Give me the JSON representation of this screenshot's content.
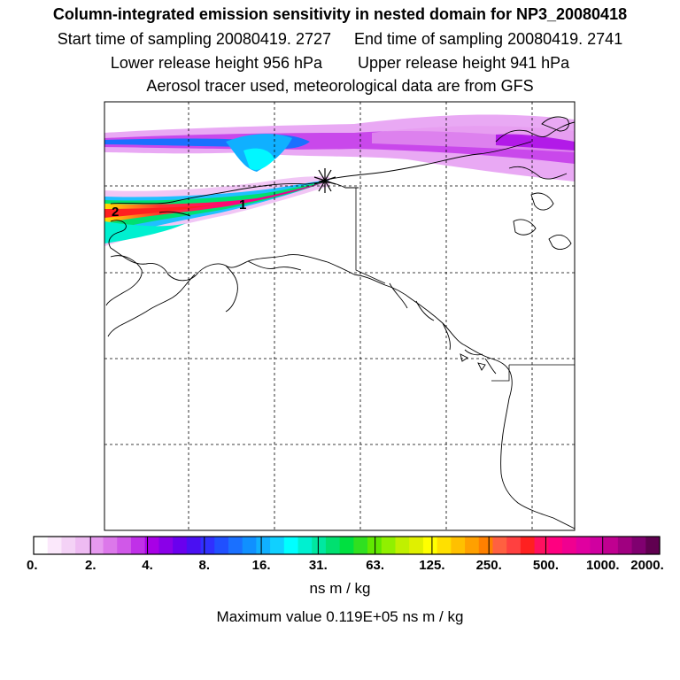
{
  "title": "Column-integrated emission sensitivity in nested domain for NP3_20080418",
  "sampling": {
    "start": "Start time of sampling 20080419.  2727",
    "end": "End time of sampling 20080419.  2741"
  },
  "release": {
    "lower": "Lower release height  956 hPa",
    "upper": "Upper release height  941 hPa"
  },
  "tracer_note": "Aerosol tracer used, meteorological data are from GFS",
  "markers": [
    "1",
    "2"
  ],
  "colorbar": {
    "tick_labels": [
      "0.",
      "2.",
      "4.",
      "8.",
      "16.",
      "31.",
      "63.",
      "125.",
      "250.",
      "500.",
      "1000.",
      "2000."
    ],
    "units": "ns m / kg",
    "colors": [
      "#ffffff",
      "#fbe8fb",
      "#f4d2f6",
      "#eebbf2",
      "#e69aef",
      "#dc78ea",
      "#d058e8",
      "#c030e8",
      "#a800e6",
      "#8a00e8",
      "#6a00ee",
      "#4a10f2",
      "#3030ff",
      "#2050ff",
      "#1a70ff",
      "#1090ff",
      "#10b0ff",
      "#10d0ff",
      "#00ffff",
      "#00f0d0",
      "#00e8a0",
      "#00e070",
      "#00e040",
      "#30e020",
      "#60e800",
      "#90f000",
      "#c0f000",
      "#e0f000",
      "#ffff00",
      "#ffe000",
      "#ffc000",
      "#ffa000",
      "#ff8000",
      "#ff6040",
      "#ff4040",
      "#ff2020",
      "#ff1060",
      "#ff0080",
      "#f00090",
      "#e000a0",
      "#d000a0",
      "#c00090",
      "#a00080",
      "#800070",
      "#600050"
    ]
  },
  "max_value": "Maximum value  0.119E+05 ns m / kg"
}
